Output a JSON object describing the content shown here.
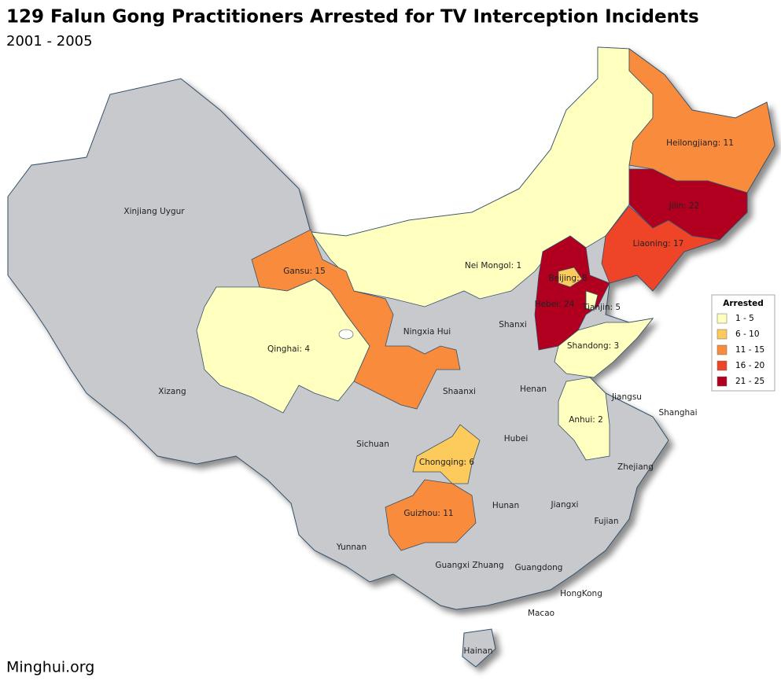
{
  "title": "129 Falun Gong Practitioners Arrested for TV Interception Incidents",
  "subtitle": "2001 - 2005",
  "footer": "Minghui.org",
  "base_color": "#c8c9cd",
  "legend": {
    "title": "Arrested",
    "bins": [
      {
        "label": "1 - 5",
        "min": 1,
        "max": 5,
        "color": "#ffffbf"
      },
      {
        "label": "6 - 10",
        "min": 6,
        "max": 10,
        "color": "#fdca5c"
      },
      {
        "label": "11 - 15",
        "min": 11,
        "max": 15,
        "color": "#f98b3d"
      },
      {
        "label": "16 - 20",
        "min": 16,
        "max": 20,
        "color": "#ee4427"
      },
      {
        "label": "21 - 25",
        "min": 21,
        "max": 25,
        "color": "#b1001f"
      }
    ]
  },
  "provinces": [
    {
      "label": "Nei Mongol: 1",
      "value": 1
    },
    {
      "label": "Heilongjiang: 11",
      "value": 11
    },
    {
      "label": "Jilin: 22",
      "value": 22
    },
    {
      "label": "Liaoning: 17",
      "value": 17
    },
    {
      "label": "Hebei: 24",
      "value": 24
    },
    {
      "label": "Beijing: 8",
      "value": 8
    },
    {
      "label": "Tianjin: 5",
      "value": 5
    },
    {
      "label": "Shandong: 3",
      "value": 3
    },
    {
      "label": "Anhui: 2",
      "value": 2
    },
    {
      "label": "Gansu: 15",
      "value": 15
    },
    {
      "label": "Qinghai: 4",
      "value": 4
    },
    {
      "label": "Chongqing: 6",
      "value": 6
    },
    {
      "label": "Guizhou: 11",
      "value": 11
    },
    {
      "label": "Xinjiang Uygur"
    },
    {
      "label": "Xizang"
    },
    {
      "label": "Sichuan"
    },
    {
      "label": "Yunnan"
    },
    {
      "label": "Shaanxi"
    },
    {
      "label": "Shanxi"
    },
    {
      "label": "Henan"
    },
    {
      "label": "Hubei"
    },
    {
      "label": "Hunan"
    },
    {
      "label": "Jiangxi"
    },
    {
      "label": "Jiangsu"
    },
    {
      "label": "Shanghai"
    },
    {
      "label": "Zhejiang"
    },
    {
      "label": "Fujian"
    },
    {
      "label": "Guangdong"
    },
    {
      "label": "Guangxi Zhuang"
    },
    {
      "label": "Hainan"
    },
    {
      "label": "HongKong"
    },
    {
      "label": "Macao"
    },
    {
      "label": "Ningxia Hui"
    }
  ]
}
